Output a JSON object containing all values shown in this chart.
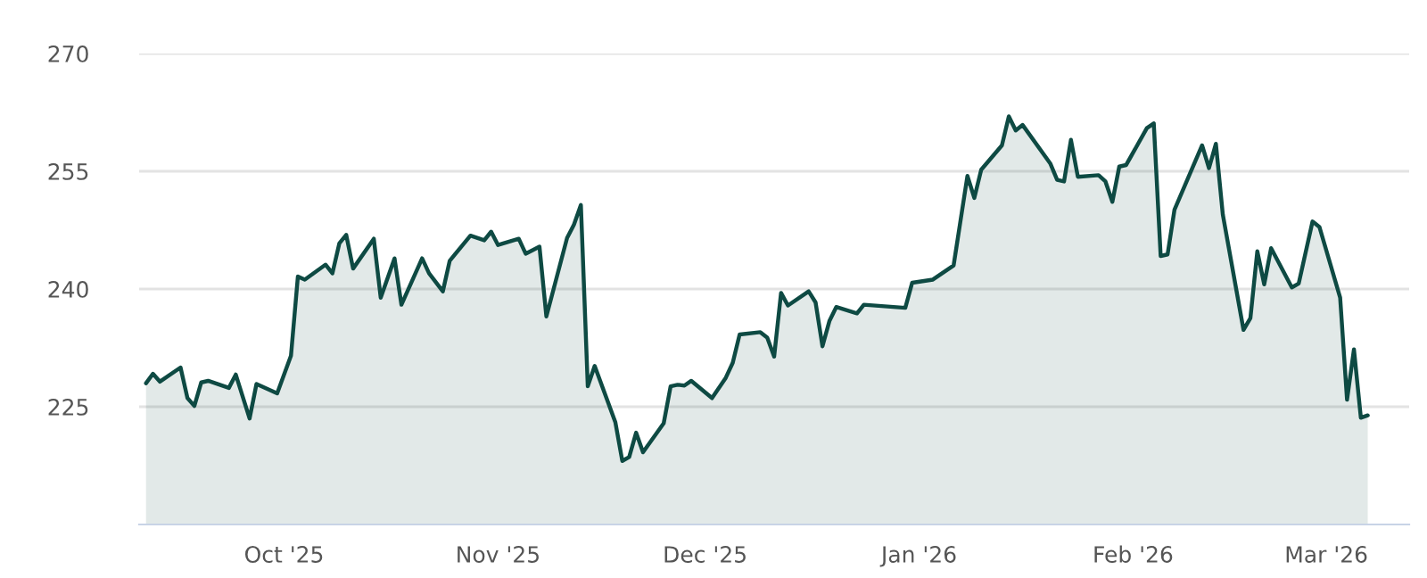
{
  "chart_data": {
    "type": "area",
    "x": [
      "2025-09-11",
      "2025-09-12",
      "2025-09-13",
      "2025-09-16",
      "2025-09-17",
      "2025-09-18",
      "2025-09-19",
      "2025-09-20",
      "2025-09-23",
      "2025-09-24",
      "2025-09-26",
      "2025-09-27",
      "2025-09-30",
      "2025-10-02",
      "2025-10-03",
      "2025-10-04",
      "2025-10-07",
      "2025-10-08",
      "2025-10-09",
      "2025-10-10",
      "2025-10-11",
      "2025-10-14",
      "2025-10-15",
      "2025-10-17",
      "2025-10-18",
      "2025-10-21",
      "2025-10-22",
      "2025-10-24",
      "2025-10-25",
      "2025-10-28",
      "2025-10-30",
      "2025-10-31",
      "2025-11-01",
      "2025-11-04",
      "2025-11-05",
      "2025-11-07",
      "2025-11-08",
      "2025-11-11",
      "2025-11-12",
      "2025-11-13",
      "2025-11-14",
      "2025-11-15",
      "2025-11-18",
      "2025-11-19",
      "2025-11-20",
      "2025-11-21",
      "2025-11-22",
      "2025-11-25",
      "2025-11-26",
      "2025-11-27",
      "2025-11-28",
      "2025-11-29",
      "2025-12-02",
      "2025-12-04",
      "2025-12-05",
      "2025-12-06",
      "2025-12-09",
      "2025-12-10",
      "2025-12-11",
      "2025-12-12",
      "2025-12-13",
      "2025-12-16",
      "2025-12-17",
      "2025-12-18",
      "2025-12-19",
      "2025-12-20",
      "2025-12-23",
      "2025-12-24",
      "2025-12-30",
      "2025-12-31",
      "2026-01-03",
      "2026-01-06",
      "2026-01-08",
      "2026-01-09",
      "2026-01-10",
      "2026-01-13",
      "2026-01-14",
      "2026-01-15",
      "2026-01-16",
      "2026-01-20",
      "2026-01-21",
      "2026-01-22",
      "2026-01-23",
      "2026-01-24",
      "2026-01-27",
      "2026-01-28",
      "2026-01-29",
      "2026-01-30",
      "2026-01-31",
      "2026-02-03",
      "2026-02-04",
      "2026-02-05",
      "2026-02-06",
      "2026-02-07",
      "2026-02-11",
      "2026-02-12",
      "2026-02-13",
      "2026-02-14",
      "2026-02-17",
      "2026-02-18",
      "2026-02-19",
      "2026-02-20",
      "2026-02-21",
      "2026-02-24",
      "2026-02-25",
      "2026-02-27",
      "2026-02-28",
      "2026-03-03",
      "2026-03-04",
      "2026-03-05",
      "2026-03-06",
      "2026-03-07"
    ],
    "series": [
      {
        "color": "#0e4a43",
        "values": [
          228.0,
          229.2,
          228.2,
          230.0,
          226.1,
          225.1,
          228.1,
          228.3,
          227.4,
          229.1,
          223.5,
          227.9,
          226.7,
          231.5,
          241.6,
          241.2,
          243.1,
          242.0,
          245.8,
          246.9,
          242.6,
          246.4,
          238.9,
          243.9,
          238.0,
          243.9,
          242.0,
          239.7,
          243.6,
          246.8,
          246.2,
          247.3,
          245.6,
          246.4,
          244.5,
          245.4,
          236.5,
          246.5,
          248.2,
          250.7,
          227.6,
          230.2,
          223.0,
          218.1,
          218.6,
          221.7,
          219.2,
          222.9,
          227.6,
          227.8,
          227.7,
          228.3,
          226.1,
          228.7,
          230.6,
          234.2,
          234.5,
          233.8,
          231.4,
          239.5,
          237.9,
          239.7,
          238.3,
          232.7,
          235.9,
          237.7,
          236.9,
          238.0,
          237.6,
          240.8,
          241.2,
          243.0,
          254.4,
          251.6,
          255.2,
          258.3,
          262.0,
          260.2,
          260.9,
          256.0,
          253.9,
          253.7,
          259.0,
          254.3,
          254.5,
          253.7,
          251.1,
          255.6,
          255.8,
          260.5,
          261.1,
          244.2,
          244.4,
          250.1,
          258.3,
          255.4,
          258.5,
          249.5,
          234.8,
          236.3,
          244.8,
          240.6,
          245.2,
          240.2,
          240.7,
          248.6,
          247.9,
          238.9,
          225.9,
          232.3,
          223.6,
          223.9
        ]
      }
    ],
    "xlim": [
      "2025-09-10",
      "2026-03-13"
    ],
    "xticks": [
      {
        "value": "2025-10-01",
        "label": "Oct '25"
      },
      {
        "value": "2025-11-01",
        "label": "Nov '25"
      },
      {
        "value": "2025-12-01",
        "label": "Dec '25"
      },
      {
        "value": "2026-01-01",
        "label": "Jan '26"
      },
      {
        "value": "2026-02-01",
        "label": "Feb '26"
      },
      {
        "value": "2026-03-01",
        "label": "Mar '26"
      }
    ],
    "ylim": [
      210,
      270
    ],
    "yticks": [
      225,
      240,
      255,
      270
    ],
    "grid": "y"
  }
}
